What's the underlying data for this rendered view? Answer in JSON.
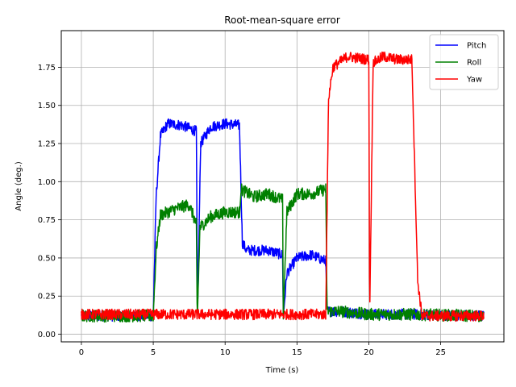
{
  "chart_data": {
    "type": "line",
    "title": "Root-mean-square error",
    "xlabel": "Time (s)",
    "ylabel": "Angle (deg.)",
    "xlim": [
      -1.4,
      29.4
    ],
    "ylim": [
      -0.05,
      1.99
    ],
    "xticks": [
      0,
      5,
      10,
      15,
      20,
      25
    ],
    "yticks": [
      0.0,
      0.25,
      0.5,
      0.75,
      1.0,
      1.25,
      1.5,
      1.75
    ],
    "x_tick_labels": [
      "0",
      "5",
      "10",
      "15",
      "20",
      "25"
    ],
    "y_tick_labels": [
      "0.00",
      "0.25",
      "0.50",
      "0.75",
      "1.00",
      "1.25",
      "1.50",
      "1.75"
    ],
    "grid": true,
    "legend_position": "top-right",
    "series": [
      {
        "name": "Pitch",
        "color": "#0000ff",
        "noise": 0.035,
        "segments": [
          {
            "x": [
              0,
              5.0
            ],
            "y": [
              0.12,
              0.12
            ]
          },
          {
            "x": [
              5.0,
              5.2,
              5.5,
              6.0,
              7.0,
              8.0
            ],
            "y": [
              0.12,
              0.9,
              1.3,
              1.38,
              1.37,
              1.33
            ]
          },
          {
            "x": [
              8.0,
              8.08,
              8.3
            ],
            "y": [
              1.33,
              0.12,
              1.25
            ]
          },
          {
            "x": [
              8.3,
              9.0,
              10.0,
              11.0
            ],
            "y": [
              1.25,
              1.36,
              1.38,
              1.37
            ]
          },
          {
            "x": [
              11.0,
              11.2,
              11.5,
              13.0,
              14.0
            ],
            "y": [
              1.37,
              0.6,
              0.55,
              0.55,
              0.52
            ]
          },
          {
            "x": [
              14.0,
              14.05,
              14.3,
              15.0,
              16.0,
              17.0
            ],
            "y": [
              0.52,
              0.12,
              0.4,
              0.5,
              0.52,
              0.48
            ]
          },
          {
            "x": [
              17.0,
              17.1,
              18.0,
              20.0,
              23.0,
              28.0
            ],
            "y": [
              0.48,
              0.15,
              0.15,
              0.13,
              0.13,
              0.12
            ]
          }
        ]
      },
      {
        "name": "Roll",
        "color": "#008000",
        "noise": 0.04,
        "segments": [
          {
            "x": [
              0,
              5.0
            ],
            "y": [
              0.12,
              0.12
            ]
          },
          {
            "x": [
              5.0,
              5.2,
              5.5,
              6.5,
              7.5,
              8.0
            ],
            "y": [
              0.12,
              0.55,
              0.78,
              0.82,
              0.85,
              0.72
            ]
          },
          {
            "x": [
              8.0,
              8.06,
              8.25
            ],
            "y": [
              0.72,
              0.08,
              0.7
            ]
          },
          {
            "x": [
              8.25,
              9.0,
              10.0,
              11.0
            ],
            "y": [
              0.7,
              0.77,
              0.8,
              0.8
            ]
          },
          {
            "x": [
              11.0,
              11.1,
              12.0,
              13.0,
              14.0
            ],
            "y": [
              0.8,
              0.95,
              0.9,
              0.92,
              0.88
            ]
          },
          {
            "x": [
              14.0,
              14.05,
              14.3,
              15.0,
              16.0,
              17.0
            ],
            "y": [
              0.88,
              0.12,
              0.8,
              0.92,
              0.92,
              0.95
            ]
          },
          {
            "x": [
              17.0,
              17.1,
              18.0,
              20.0,
              23.0,
              28.0
            ],
            "y": [
              0.95,
              0.15,
              0.15,
              0.13,
              0.13,
              0.12
            ]
          }
        ]
      },
      {
        "name": "Yaw",
        "color": "#ff0000",
        "noise": 0.035,
        "segments": [
          {
            "x": [
              0,
              17.0
            ],
            "y": [
              0.13,
              0.13
            ]
          },
          {
            "x": [
              17.0,
              17.2,
              17.5,
              18.5,
              20.0
            ],
            "y": [
              0.13,
              1.55,
              1.75,
              1.82,
              1.8
            ]
          },
          {
            "x": [
              20.0,
              20.06,
              20.3
            ],
            "y": [
              1.8,
              0.12,
              1.78
            ]
          },
          {
            "x": [
              20.3,
              21.0,
              22.0,
              23.0
            ],
            "y": [
              1.78,
              1.82,
              1.8,
              1.8
            ]
          },
          {
            "x": [
              23.0,
              23.4,
              23.7,
              28.0
            ],
            "y": [
              1.8,
              0.35,
              0.12,
              0.12
            ]
          }
        ]
      }
    ]
  }
}
